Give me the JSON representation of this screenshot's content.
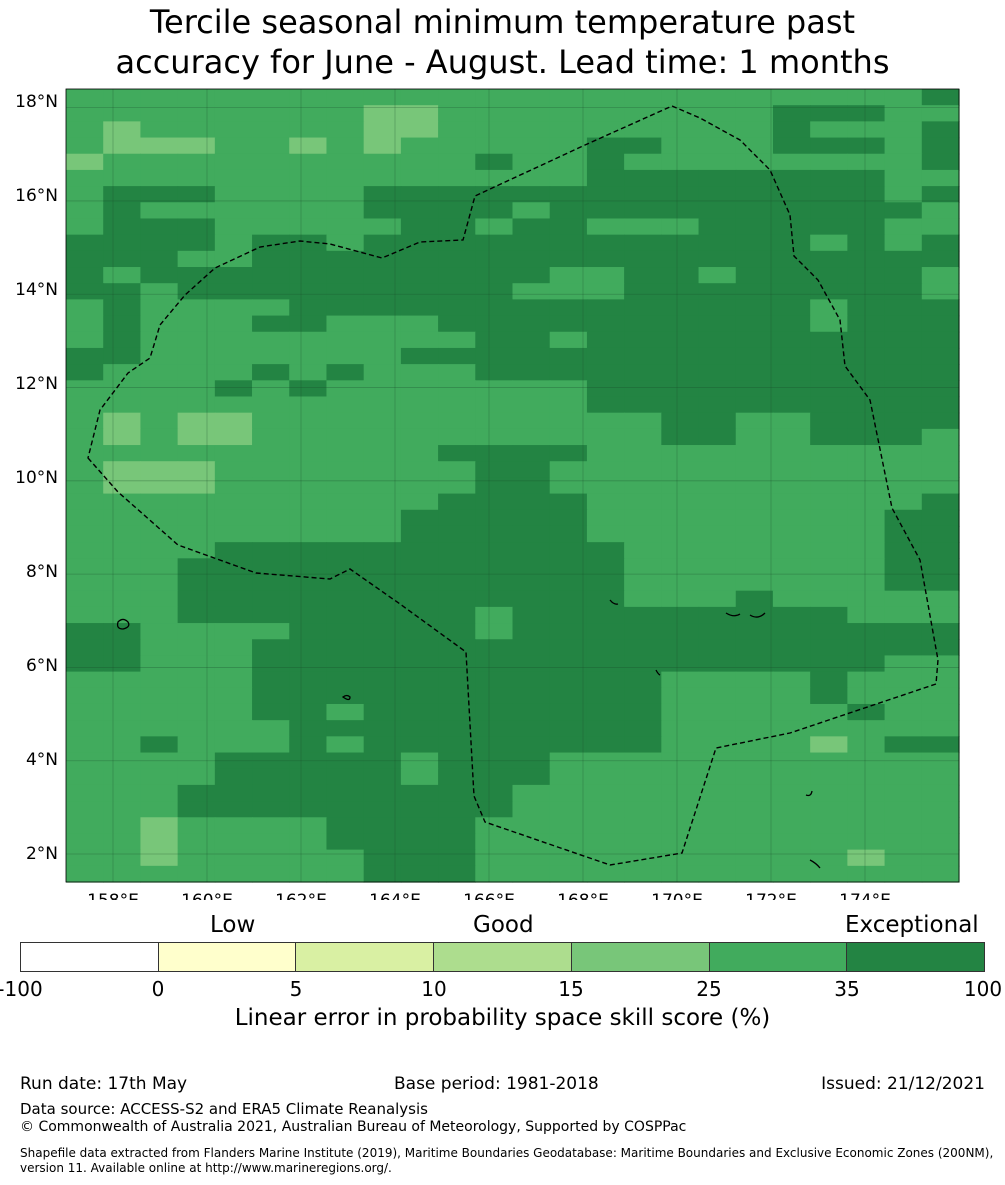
{
  "title_line1": "Tercile seasonal minimum temperature past",
  "title_line2": "accuracy for June - August. Lead time: 1 months",
  "map": {
    "lon_range": [
      157,
      176
    ],
    "lat_range": [
      1.4,
      18.4
    ],
    "lat_ticks": [
      "18°N",
      "16°N",
      "14°N",
      "12°N",
      "10°N",
      "8°N",
      "6°N",
      "4°N",
      "2°N"
    ],
    "lon_ticks": [
      "158°E",
      "160°E",
      "162°E",
      "164°E",
      "166°E",
      "168°E",
      "170°E",
      "172°E",
      "174°E"
    ],
    "categories": {
      "1": "#78c679",
      "2": "#41ab5d",
      "3": "#238443"
    },
    "grid": [
      "222222222222222222222223",
      "222222221122222222233322",
      "212222221122222222232223",
      "211122121222223322233323",
      "122222222223223222222223",
      "222222222222223333333322",
      "233322223333333333333323",
      "232222223333233333333332",
      "233322222332332223333322",
      "333323323333333333332323",
      "333223333333333333333333",
      "323333333333322332333332",
      "332333333333222333333332",
      "232222333333333333332333",
      "232223322233333333332333",
      "232222222223323333333333",
      "332222222333333333333333",
      "322223232223333333333333",
      "222232322222223333333333",
      "222222222222223333333333",
      "212112222222222233223333",
      "212112222222222233223332",
      "222222222233332222222222",
      "211122222223322222222222",
      "211122222223322222222222",
      "222222222233332222222223",
      "222222222333332222222233",
      "222222222333332222222233",
      "222233333333333222222233",
      "222333333333333222222233",
      "222333333333333222222233",
      "222333333333333222322222",
      "222333333332333333333222",
      "332222333332333333333333",
      "332223333333333333333333",
      "332223333333333333333322",
      "222223333333333322223222",
      "222223333333333322223222",
      "222223323333333322222322",
      "222222333333333322222222",
      "223222323333333322221233",
      "222233333233322222222222",
      "222233333233322222222222",
      "222333333333222222222222",
      "222333333333222222222222",
      "221222233332222222222222",
      "221222233332222222222222",
      "221222223332222222222122",
      "222222223332222222222222"
    ]
  },
  "legend": {
    "labels": [
      "Low",
      "Good",
      "Exceptional"
    ],
    "colors": [
      "#ffffff",
      "#ffffcc",
      "#d9f0a3",
      "#addd8e",
      "#78c679",
      "#41ab5d",
      "#238443"
    ],
    "ticks": [
      "-100",
      "0",
      "5",
      "10",
      "15",
      "25",
      "35",
      "100"
    ],
    "axis_label": "Linear error in probability space skill score (%)"
  },
  "footer": {
    "run_date": "Run date: 17th May",
    "base_period": "Base period: 1981-2018",
    "issued": "Issued: 21/12/2021",
    "data_source": "Data source: ACCESS-S2 and ERA5 Climate Reanalysis",
    "copyright": "© Commonwealth of Australia 2021, Australian Bureau of Meteorology, Supported by COSPPac",
    "shapefile": "Shapefile data extracted from Flanders Marine Institute (2019), Maritime Boundaries Geodatabase: Maritime Boundaries and Exclusive Economic Zones (200NM), version 11. Available online at http://www.marineregions.org/."
  }
}
